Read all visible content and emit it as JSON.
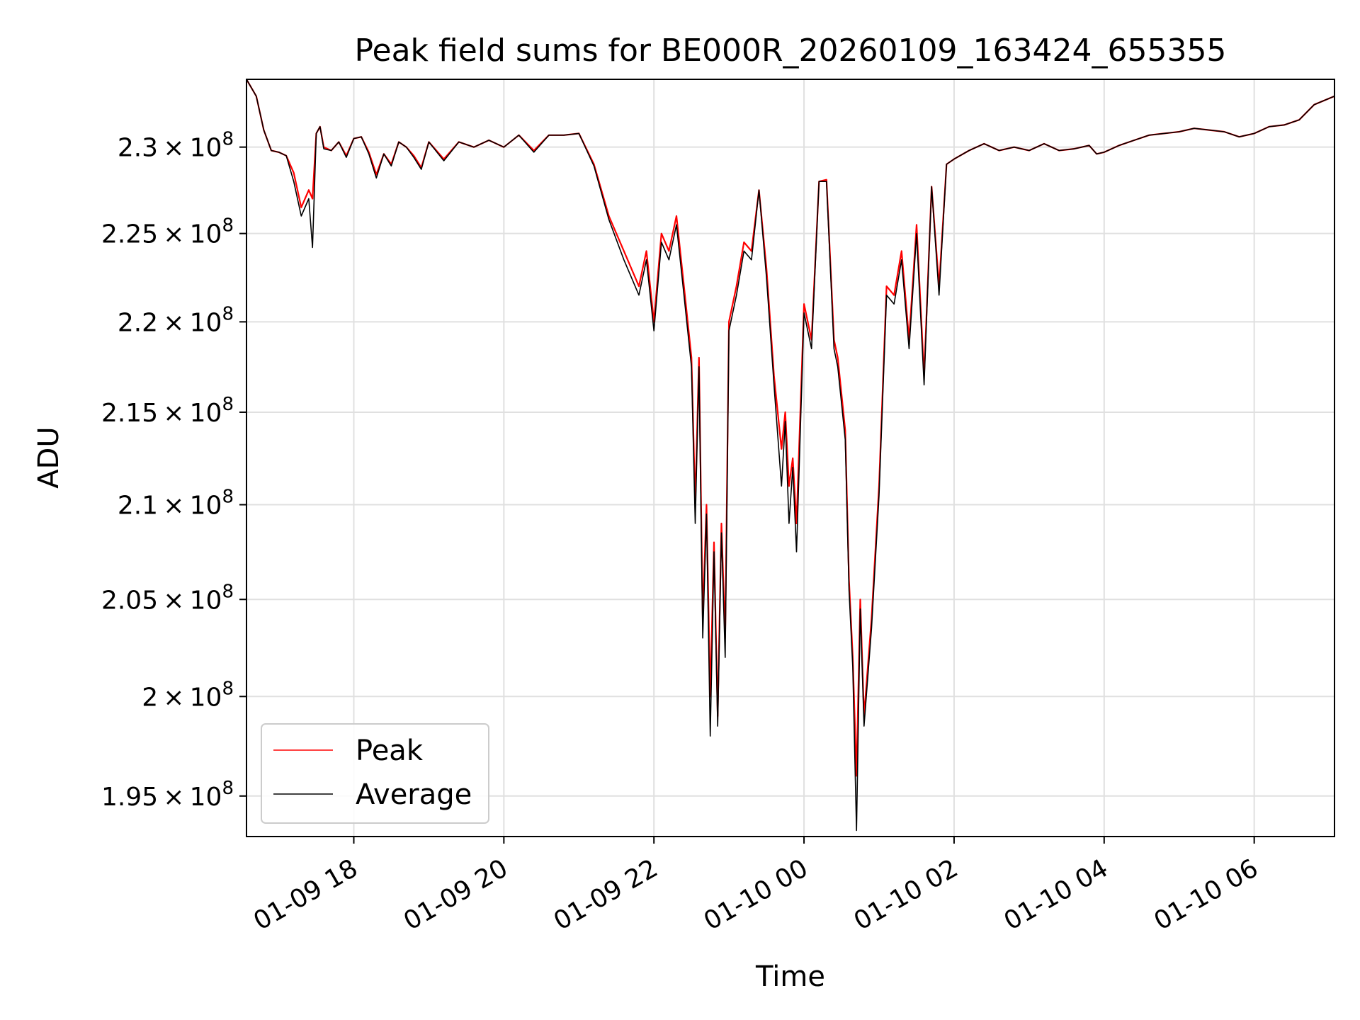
{
  "chart_data": {
    "type": "line",
    "title": "Peak field sums for BE000R_20260109_163424_655355",
    "xlabel": "Time",
    "ylabel": "ADU",
    "y_scale": "log",
    "xlim_hours": [
      16.57,
      31.07
    ],
    "ylim": [
      193000000,
      234000000
    ],
    "grid": true,
    "legend_position": "lower-left",
    "x_ticks": [
      {
        "hours": 18,
        "label": "01-09 18"
      },
      {
        "hours": 20,
        "label": "01-09 20"
      },
      {
        "hours": 22,
        "label": "01-09 22"
      },
      {
        "hours": 24,
        "label": "01-10 00"
      },
      {
        "hours": 26,
        "label": "01-10 02"
      },
      {
        "hours": 28,
        "label": "01-10 04"
      },
      {
        "hours": 30,
        "label": "01-10 06"
      }
    ],
    "y_ticks": [
      {
        "value": 195000000,
        "mantissa": "1.95"
      },
      {
        "value": 200000000,
        "mantissa": "2"
      },
      {
        "value": 205000000,
        "mantissa": "2.05"
      },
      {
        "value": 210000000,
        "mantissa": "2.1"
      },
      {
        "value": 215000000,
        "mantissa": "2.15"
      },
      {
        "value": 220000000,
        "mantissa": "2.2"
      },
      {
        "value": 225000000,
        "mantissa": "2.25"
      },
      {
        "value": 230000000,
        "mantissa": "2.3"
      }
    ],
    "y_tick_times": "×",
    "y_tick_base": "10",
    "y_tick_exponent": "8",
    "x_units": "hours since 2026-01-09 00:00",
    "series": [
      {
        "name": "Peak",
        "color": "#ff0000",
        "x": [
          16.57,
          16.7,
          16.8,
          16.9,
          17.0,
          17.1,
          17.2,
          17.3,
          17.4,
          17.45,
          17.5,
          17.55,
          17.6,
          17.7,
          17.8,
          17.9,
          18.0,
          18.1,
          18.2,
          18.3,
          18.4,
          18.5,
          18.6,
          18.7,
          18.8,
          18.9,
          19.0,
          19.2,
          19.4,
          19.6,
          19.8,
          20.0,
          20.2,
          20.4,
          20.6,
          20.8,
          21.0,
          21.2,
          21.4,
          21.6,
          21.8,
          21.9,
          22.0,
          22.1,
          22.2,
          22.3,
          22.4,
          22.5,
          22.55,
          22.6,
          22.65,
          22.7,
          22.75,
          22.8,
          22.85,
          22.9,
          22.95,
          23.0,
          23.1,
          23.2,
          23.3,
          23.4,
          23.5,
          23.6,
          23.7,
          23.75,
          23.8,
          23.85,
          23.9,
          24.0,
          24.1,
          24.2,
          24.3,
          24.4,
          24.45,
          24.5,
          24.55,
          24.6,
          24.65,
          24.7,
          24.75,
          24.8,
          24.9,
          25.0,
          25.1,
          25.2,
          25.3,
          25.4,
          25.5,
          25.6,
          25.7,
          25.8,
          25.9,
          26.0,
          26.2,
          26.4,
          26.6,
          26.8,
          27.0,
          27.2,
          27.4,
          27.6,
          27.8,
          27.9,
          28.0,
          28.2,
          28.4,
          28.6,
          28.8,
          29.0,
          29.2,
          29.4,
          29.6,
          29.8,
          30.0,
          30.2,
          30.4,
          30.6,
          30.8,
          31.07
        ],
        "values": [
          234000000,
          233000000,
          231000000,
          229800000,
          229700000,
          229500000,
          228500000,
          226500000,
          227500000,
          227000000,
          230800000,
          231200000,
          230000000,
          229800000,
          230300000,
          229500000,
          230500000,
          230600000,
          229700000,
          228400000,
          229600000,
          229000000,
          230300000,
          230000000,
          229500000,
          228800000,
          230300000,
          229300000,
          230300000,
          230000000,
          230400000,
          230000000,
          230700000,
          229800000,
          230700000,
          230700000,
          230800000,
          229000000,
          226000000,
          224000000,
          222000000,
          224000000,
          220000000,
          225000000,
          224000000,
          226000000,
          222000000,
          218000000,
          210000000,
          218000000,
          204000000,
          210000000,
          200000000,
          208000000,
          199000000,
          209000000,
          203000000,
          220000000,
          222000000,
          224500000,
          224000000,
          227500000,
          223000000,
          217000000,
          213000000,
          215000000,
          211000000,
          212500000,
          209000000,
          221000000,
          219000000,
          228000000,
          228100000,
          219000000,
          218000000,
          216000000,
          214000000,
          206000000,
          202000000,
          196000000,
          205000000,
          199000000,
          204000000,
          211000000,
          222000000,
          221500000,
          224000000,
          219000000,
          225500000,
          217000000,
          227700000,
          222000000,
          229000000,
          229300000,
          229800000,
          230200000,
          229800000,
          230000000,
          229800000,
          230200000,
          229800000,
          229900000,
          230100000,
          229600000,
          229700000,
          230100000,
          230400000,
          230700000,
          230800000,
          230900000,
          231100000,
          231000000,
          230900000,
          230600000,
          230800000,
          231200000,
          231300000,
          231600000,
          232500000,
          233000000
        ]
      },
      {
        "name": "Average",
        "color": "#000000",
        "x": [
          16.57,
          16.7,
          16.8,
          16.9,
          17.0,
          17.1,
          17.2,
          17.3,
          17.4,
          17.45,
          17.5,
          17.55,
          17.6,
          17.7,
          17.8,
          17.9,
          18.0,
          18.1,
          18.2,
          18.3,
          18.4,
          18.5,
          18.6,
          18.7,
          18.8,
          18.9,
          19.0,
          19.2,
          19.4,
          19.6,
          19.8,
          20.0,
          20.2,
          20.4,
          20.6,
          20.8,
          21.0,
          21.2,
          21.4,
          21.6,
          21.8,
          21.9,
          22.0,
          22.1,
          22.2,
          22.3,
          22.4,
          22.5,
          22.55,
          22.6,
          22.65,
          22.7,
          22.75,
          22.8,
          22.85,
          22.9,
          22.95,
          23.0,
          23.1,
          23.2,
          23.3,
          23.4,
          23.5,
          23.6,
          23.7,
          23.75,
          23.8,
          23.85,
          23.9,
          24.0,
          24.1,
          24.2,
          24.3,
          24.4,
          24.45,
          24.5,
          24.55,
          24.6,
          24.65,
          24.7,
          24.75,
          24.8,
          24.9,
          25.0,
          25.1,
          25.2,
          25.3,
          25.4,
          25.5,
          25.6,
          25.7,
          25.8,
          25.9,
          26.0,
          26.2,
          26.4,
          26.6,
          26.8,
          27.0,
          27.2,
          27.4,
          27.6,
          27.8,
          27.9,
          28.0,
          28.2,
          28.4,
          28.6,
          28.8,
          29.0,
          29.2,
          29.4,
          29.6,
          29.8,
          30.0,
          30.2,
          30.4,
          30.6,
          30.8,
          31.07
        ],
        "values": [
          234000000,
          233000000,
          231000000,
          229800000,
          229700000,
          229500000,
          228000000,
          226000000,
          227000000,
          224200000,
          230800000,
          231200000,
          229900000,
          229800000,
          230300000,
          229400000,
          230500000,
          230600000,
          229600000,
          228200000,
          229600000,
          228900000,
          230300000,
          230000000,
          229400000,
          228700000,
          230300000,
          229200000,
          230300000,
          230000000,
          230400000,
          230000000,
          230700000,
          229700000,
          230700000,
          230700000,
          230800000,
          228900000,
          225800000,
          223500000,
          221500000,
          223500000,
          219500000,
          224500000,
          223500000,
          225500000,
          221500000,
          217500000,
          209000000,
          217500000,
          203000000,
          209500000,
          198000000,
          207500000,
          198500000,
          208500000,
          202000000,
          219500000,
          221500000,
          224000000,
          223500000,
          227500000,
          222500000,
          216500000,
          211000000,
          214500000,
          209000000,
          212000000,
          207500000,
          220500000,
          218500000,
          228000000,
          228000000,
          218500000,
          217500000,
          215500000,
          213500000,
          205500000,
          201500000,
          193300000,
          204500000,
          198500000,
          203500000,
          210500000,
          221500000,
          221000000,
          223500000,
          218500000,
          225000000,
          216500000,
          227700000,
          221500000,
          229000000,
          229300000,
          229800000,
          230200000,
          229800000,
          230000000,
          229800000,
          230200000,
          229800000,
          229900000,
          230100000,
          229600000,
          229700000,
          230100000,
          230400000,
          230700000,
          230800000,
          230900000,
          231100000,
          231000000,
          230900000,
          230600000,
          230800000,
          231200000,
          231300000,
          231600000,
          232500000,
          233000000
        ]
      }
    ]
  }
}
